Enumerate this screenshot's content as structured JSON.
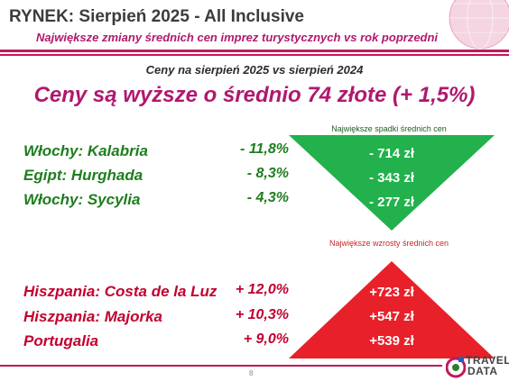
{
  "header": {
    "title": "RYNEK: Sierpień 2025 - All Inclusive",
    "subtitle": "Największe zmiany średnich cen imprez turystycznych vs rok poprzedni"
  },
  "context": "Ceny na sierpień 2025 vs sierpień 2024",
  "headline": "Ceny są wyższe o średnio 74 złote (+ 1,5%)",
  "decreases": {
    "label": "Największe spadki średnich cen",
    "color": "#22b14c",
    "rows": [
      {
        "destination": "Włochy: Kalabria",
        "change": "- 11,8%",
        "amount": "- 714 zł"
      },
      {
        "destination": "Egipt: Hurghada",
        "change": "- 8,3%",
        "amount": "- 343 zł"
      },
      {
        "destination": "Włochy: Sycylia",
        "change": "- 4,3%",
        "amount": "- 277 zł"
      }
    ]
  },
  "increases": {
    "label": "Największe wzrosty średnich cen",
    "color": "#e8202a",
    "rows": [
      {
        "destination": "Hiszpania: Costa de la Luz",
        "change": "+ 12,0%",
        "amount": "+723 zł"
      },
      {
        "destination": "Hiszpania: Majorka",
        "change": "+ 10,3%",
        "amount": "+547 zł"
      },
      {
        "destination": "Portugalia",
        "change": "+ 9,0%",
        "amount": "+539 zł"
      }
    ]
  },
  "footer": {
    "page_number": "8",
    "logo_line1": "TRAVEL",
    "logo_line2": "DATA"
  }
}
